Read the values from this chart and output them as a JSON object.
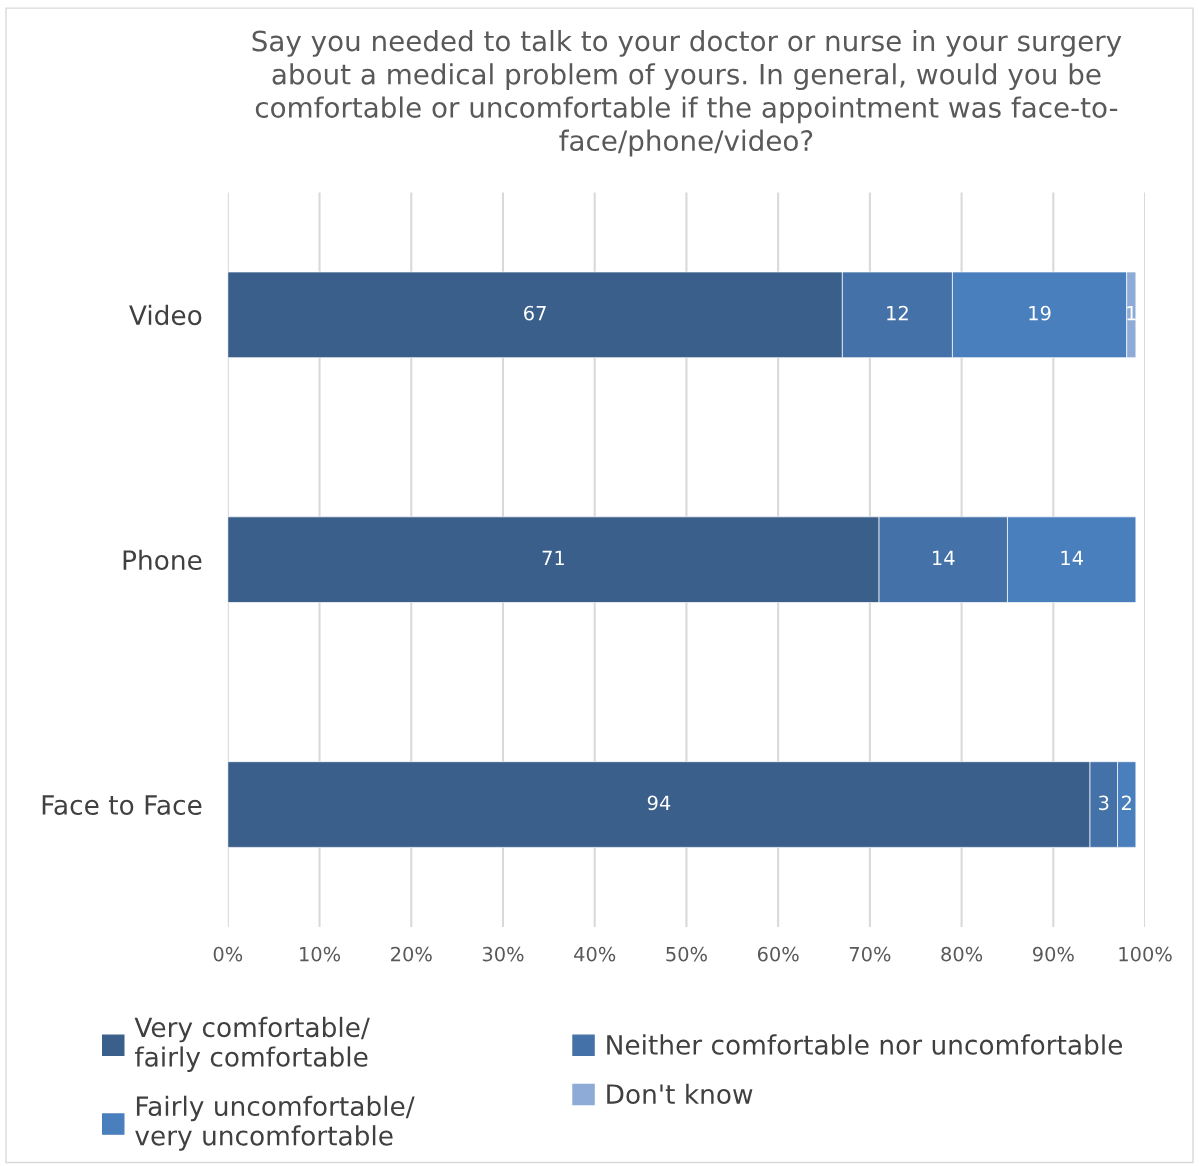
{
  "chart_data": {
    "type": "bar",
    "orientation": "horizontal",
    "stacked": true,
    "title": "Say you needed to talk to your doctor or nurse in your surgery\nabout a medical problem of yours. In general, would you be\ncomfortable or uncomfortable if the appointment was face-to-\nface/phone/video?",
    "categories": [
      "Video",
      "Phone",
      "Face to Face"
    ],
    "series": [
      {
        "name": "Very comfortable/\nfairly comfortable",
        "color": "#3a5f8b",
        "values": [
          67,
          71,
          94
        ]
      },
      {
        "name": "Neither comfortable nor uncomfortable",
        "color": "#4472a8",
        "values": [
          12,
          14,
          3
        ]
      },
      {
        "name": "Fairly uncomfortable/\nvery uncomfortable",
        "color": "#4a7fbd",
        "values": [
          19,
          14,
          2
        ]
      },
      {
        "name": "Don't know",
        "color": "#8eaad6",
        "values": [
          1,
          null,
          null
        ]
      }
    ],
    "xlim": [
      0,
      100
    ],
    "xticks": [
      {
        "value": 0,
        "label": "0%"
      },
      {
        "value": 10,
        "label": "10%"
      },
      {
        "value": 20,
        "label": "20%"
      },
      {
        "value": 30,
        "label": "30%"
      },
      {
        "value": 40,
        "label": "40%"
      },
      {
        "value": 50,
        "label": "50%"
      },
      {
        "value": 60,
        "label": "60%"
      },
      {
        "value": 70,
        "label": "70%"
      },
      {
        "value": 80,
        "label": "80%"
      },
      {
        "value": 90,
        "label": "90%"
      },
      {
        "value": 100,
        "label": "100%"
      }
    ],
    "grid": "x",
    "legend": "bottom",
    "data_labels": true
  }
}
